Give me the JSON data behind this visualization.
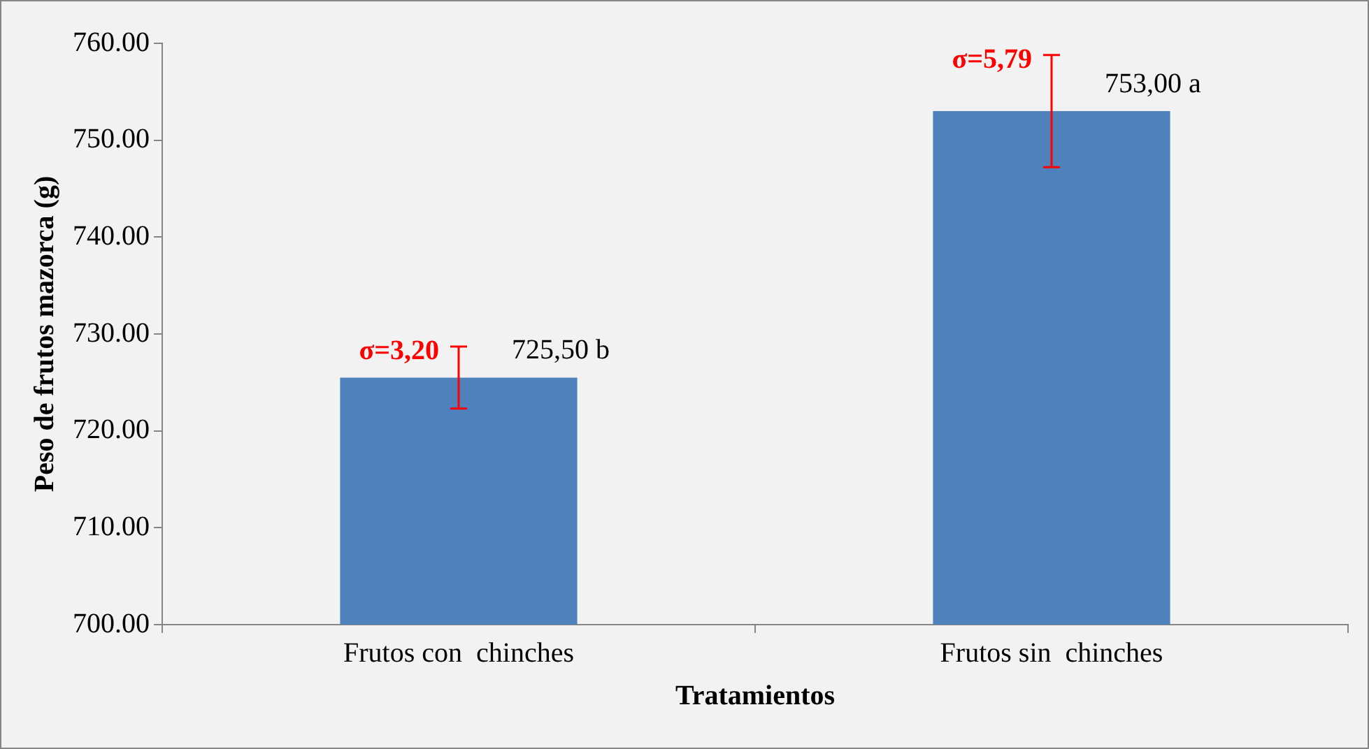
{
  "chart_data": {
    "type": "bar",
    "xlabel": "Tratamientos",
    "ylabel": "Peso de frutos mazorca (g)",
    "categories": [
      "Frutos con  chinches",
      "Frutos sin  chinches"
    ],
    "values": [
      725.5,
      753
    ],
    "color": "#4f81bd",
    "errors": [
      3.2,
      5.79
    ],
    "value_labels": [
      "725,50 b",
      "753,00 a"
    ],
    "annotations": [
      {
        "text": "σ=3,20",
        "x": "Frutos con  chinches",
        "y": 728.7
      },
      {
        "text": "σ=5,79",
        "x": "Frutos sin  chinches",
        "y": 758.79
      }
    ],
    "ylim": [
      700,
      760
    ],
    "yticks": [
      {
        "value": 700,
        "label": "700.00"
      },
      {
        "value": 710,
        "label": "710.00"
      },
      {
        "value": 720,
        "label": "720.00"
      },
      {
        "value": 730,
        "label": "730.00"
      },
      {
        "value": 740,
        "label": "740.00"
      },
      {
        "value": 750,
        "label": "750.00"
      },
      {
        "value": 760,
        "label": "760.00"
      }
    ],
    "grid": false,
    "legend": false
  }
}
